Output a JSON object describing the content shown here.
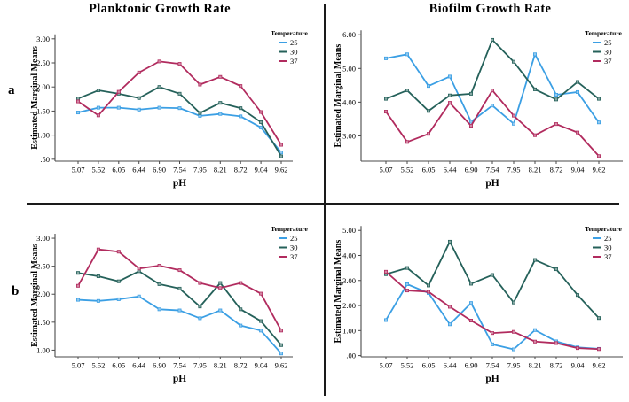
{
  "figure": {
    "column_titles": [
      "Planktonic Growth Rate",
      "Biofilm Growth Rate"
    ],
    "panel_labels": [
      "a",
      "b"
    ],
    "x_axis_label": "pH",
    "y_axis_label": "Estimated Marginal Means",
    "legend_title": "Temperature",
    "series_colors": {
      "25": "#3B9FE4",
      "30": "#25615A",
      "37": "#B12B5E"
    },
    "divider_color": "#1a1a1a"
  },
  "chart_data": [
    {
      "type": "line",
      "panel": "a",
      "title": "Planktonic Growth Rate",
      "xlabel": "pH",
      "ylabel": "Estimated Marginal Means",
      "legend_title": "Temperature",
      "legend_position": "top-right",
      "grid": false,
      "categories": [
        "5.07",
        "5.52",
        "6.05",
        "6.44",
        "6.90",
        "7.54",
        "7.95",
        "8.21",
        "8.72",
        "9.04",
        "9.62"
      ],
      "ytick_labels": [
        "3.00",
        "2.50",
        "2.00",
        "1.50",
        "1.00",
        ".50"
      ],
      "ytick_values": [
        3.0,
        2.5,
        2.0,
        1.5,
        1.0,
        0.5
      ],
      "ylim": [
        0.46,
        3.07
      ],
      "series": [
        {
          "name": "25",
          "color": "#3B9FE4",
          "values": [
            1.47,
            1.57,
            1.57,
            1.53,
            1.57,
            1.56,
            1.4,
            1.44,
            1.39,
            1.16,
            0.64
          ]
        },
        {
          "name": "30",
          "color": "#25615A",
          "values": [
            1.76,
            1.93,
            1.86,
            1.77,
            2.0,
            1.86,
            1.46,
            1.67,
            1.56,
            1.27,
            0.56
          ]
        },
        {
          "name": "37",
          "color": "#B12B5E",
          "values": [
            1.7,
            1.41,
            1.9,
            2.3,
            2.53,
            2.48,
            2.05,
            2.21,
            2.02,
            1.48,
            0.8
          ]
        }
      ]
    },
    {
      "type": "line",
      "panel": "a",
      "title": "Biofilm Growth Rate",
      "xlabel": "pH",
      "ylabel": "Estimated Marginal Means",
      "legend_title": "Temperature",
      "legend_position": "top-right",
      "grid": false,
      "categories": [
        "5.07",
        "5.52",
        "6.05",
        "6.44",
        "6.90",
        "7.54",
        "7.95",
        "8.21",
        "8.72",
        "9.04",
        "9.62"
      ],
      "ytick_labels": [
        "6.00",
        "5.00",
        "4.00",
        "3.00"
      ],
      "ytick_values": [
        6.0,
        5.0,
        4.0,
        3.0
      ],
      "ylim": [
        2.25,
        6.19
      ],
      "series": [
        {
          "name": "25",
          "color": "#3B9FE4",
          "values": [
            5.3,
            5.42,
            4.48,
            4.76,
            3.42,
            3.9,
            3.36,
            5.42,
            4.22,
            4.3,
            3.4
          ]
        },
        {
          "name": "30",
          "color": "#25615A",
          "values": [
            4.1,
            4.35,
            3.74,
            4.2,
            4.25,
            5.85,
            5.2,
            4.38,
            4.08,
            4.6,
            4.1
          ]
        },
        {
          "name": "37",
          "color": "#B12B5E",
          "values": [
            3.72,
            2.82,
            3.06,
            3.98,
            3.3,
            4.35,
            3.6,
            3.02,
            3.35,
            3.1,
            2.4
          ]
        }
      ]
    },
    {
      "type": "line",
      "panel": "b",
      "title": "Planktonic Growth Rate",
      "xlabel": "pH",
      "ylabel": "Estimated Marginal Means",
      "legend_title": "Temperature",
      "legend_position": "top-right",
      "grid": false,
      "categories": [
        "5.07",
        "5.52",
        "6.05",
        "6.44",
        "6.90",
        "7.54",
        "7.95",
        "8.21",
        "8.72",
        "9.04",
        "9.62"
      ],
      "ytick_labels": [
        "3.00",
        "2.50",
        "2.00",
        "1.50",
        "1.00"
      ],
      "ytick_values": [
        3.0,
        2.5,
        2.0,
        1.5,
        1.0
      ],
      "ylim": [
        0.88,
        3.27
      ],
      "series": [
        {
          "name": "25",
          "color": "#3B9FE4",
          "values": [
            1.9,
            1.88,
            1.91,
            1.96,
            1.73,
            1.71,
            1.57,
            1.71,
            1.44,
            1.35,
            0.94
          ]
        },
        {
          "name": "30",
          "color": "#25615A",
          "values": [
            2.38,
            2.32,
            2.23,
            2.41,
            2.18,
            2.1,
            1.78,
            2.2,
            1.73,
            1.52,
            1.09
          ]
        },
        {
          "name": "37",
          "color": "#B12B5E",
          "values": [
            2.15,
            2.8,
            2.76,
            2.46,
            2.51,
            2.43,
            2.2,
            2.11,
            2.2,
            2.01,
            1.35
          ]
        }
      ]
    },
    {
      "type": "line",
      "panel": "b",
      "title": "Biofilm Growth Rate",
      "xlabel": "pH",
      "ylabel": "Estimated Marginal Means",
      "legend_title": "Temperature",
      "legend_position": "top-right",
      "grid": false,
      "categories": [
        "5.07",
        "5.52",
        "6.05",
        "6.44",
        "6.90",
        "7.54",
        "7.95",
        "8.21",
        "8.72",
        "9.04",
        "9.62"
      ],
      "ytick_labels": [
        "5.00",
        "4.00",
        "3.00",
        "2.00",
        "1.00",
        ".00"
      ],
      "ytick_values": [
        5.0,
        4.0,
        3.0,
        2.0,
        1.0,
        0.0
      ],
      "ylim": [
        -0.05,
        5.22
      ],
      "series": [
        {
          "name": "25",
          "color": "#3B9FE4",
          "values": [
            1.42,
            2.85,
            2.5,
            1.25,
            2.1,
            0.45,
            0.25,
            1.02,
            0.57,
            0.33,
            0.27
          ]
        },
        {
          "name": "30",
          "color": "#25615A",
          "values": [
            3.25,
            3.5,
            2.8,
            4.55,
            2.87,
            3.22,
            2.12,
            3.82,
            3.45,
            2.42,
            1.5
          ]
        },
        {
          "name": "37",
          "color": "#B12B5E",
          "values": [
            3.35,
            2.6,
            2.55,
            1.95,
            1.4,
            0.9,
            0.95,
            0.56,
            0.5,
            0.3,
            0.26
          ]
        }
      ]
    }
  ]
}
